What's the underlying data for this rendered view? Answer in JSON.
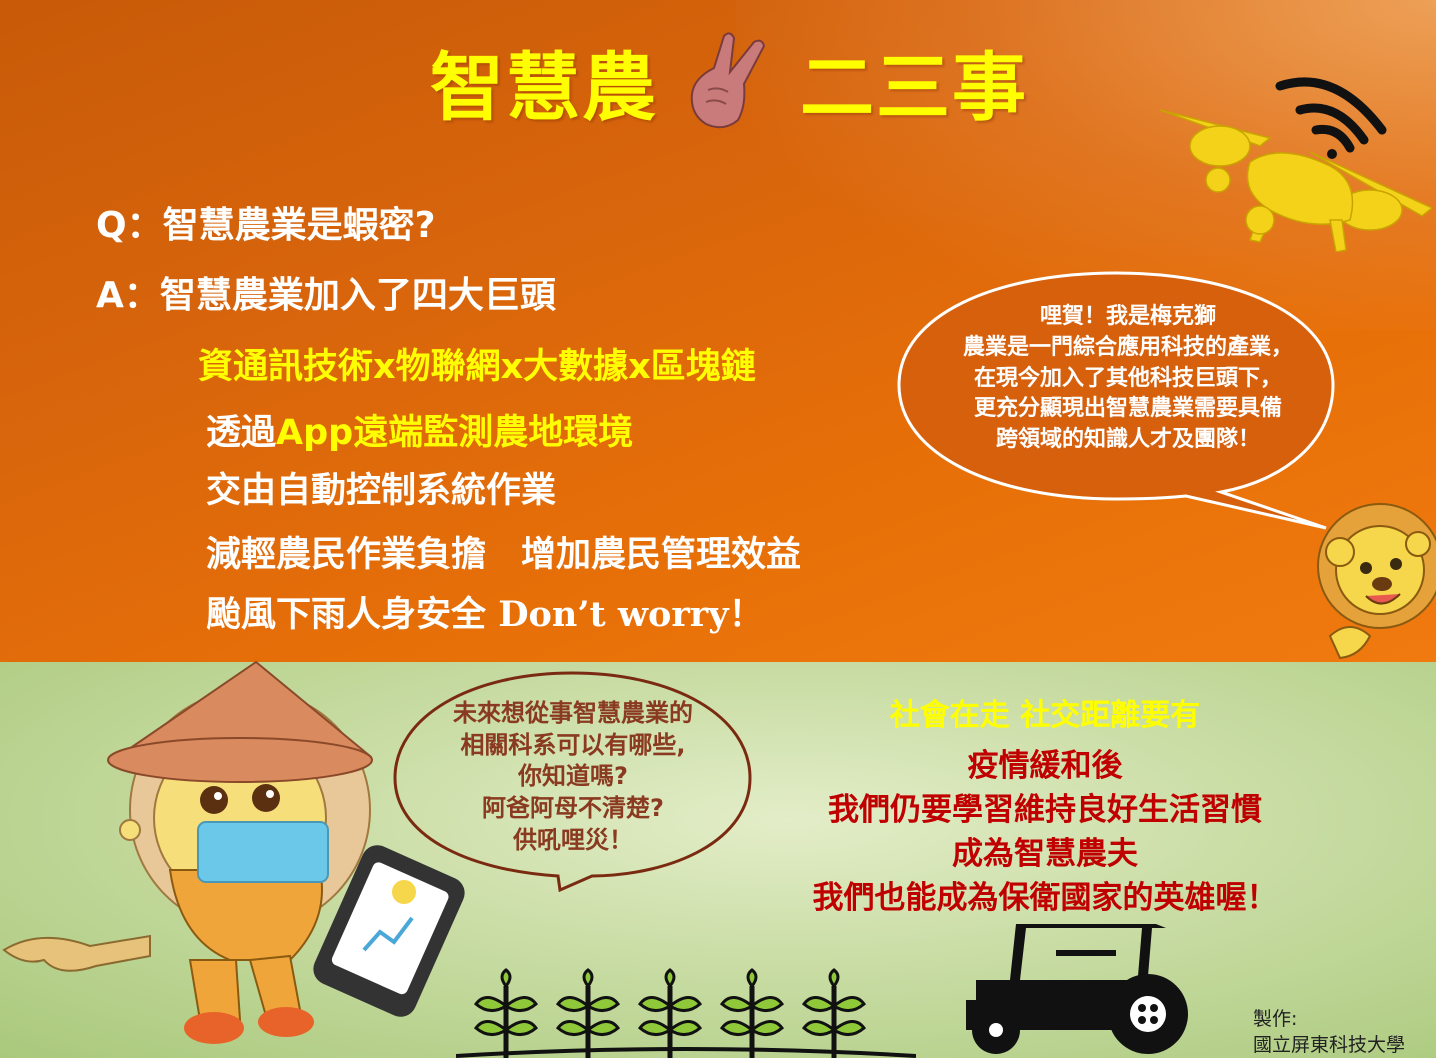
{
  "title": {
    "left": "智慧農",
    "right": "二三事"
  },
  "qa": {
    "q_prefix": "Q：",
    "q_text": "智慧農業是蝦密?",
    "a_prefix": "A：",
    "a_text": "智慧農業加入了四大巨頭"
  },
  "points": {
    "tech": "資通訊技術x物聯網x大數據x區塊鏈",
    "app_prefix": "透過",
    "app_highlight": "App遠端監測農地環境",
    "auto": "交由自動控制系統作業",
    "benefit": "減輕農民作業負擔　增加農民管理效益",
    "safety_cn": "颱風下雨人身安全",
    "safety_en": " Don’t worry！"
  },
  "lion_bubble": {
    "lines": [
      "哩賀！我是梅克獅",
      "農業是一門綜合應用科技的產業，",
      "在現今加入了其他科技巨頭下，",
      "更充分顯現出智慧農業需要具備",
      "跨領域的知識人才及團隊！"
    ]
  },
  "student_bubble": {
    "lines": [
      "未來想從事智慧農業的",
      "相關科系可以有哪些,",
      "你知道嗎?",
      "阿爸阿母不清楚?",
      "供吼哩災！"
    ]
  },
  "message": {
    "headline": "社會在走 社交距離要有",
    "lines": [
      "疫情緩和後",
      "我們仍要學習維持良好生活習慣",
      "成為智慧農夫",
      "我們也能成為保衛國家的英雄喔！"
    ]
  },
  "credit": {
    "label": "製作:",
    "org": "國立屏東科技大學"
  },
  "colors": {
    "accent_yellow": "#ffff00",
    "message_red": "#c00000",
    "headline_yellow": "#ffff00",
    "bubble_brown": "#7a2a10"
  },
  "icons": [
    "victory-hand-icon",
    "drone-icon",
    "wifi-icon",
    "lion-mascot",
    "tractor-icon",
    "sprout-icon",
    "tablet-icon"
  ]
}
